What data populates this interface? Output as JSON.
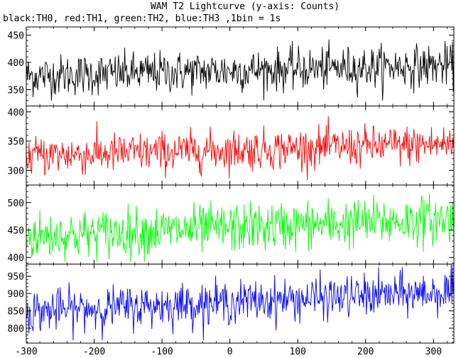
{
  "chart_data": {
    "type": "line",
    "title": "WAM T2 Lightcurve (y-axis: Counts)",
    "subtitle": "black:TH0, red:TH1, green:TH2, blue:TH3 ,1bin = 1s",
    "xlabel": "",
    "ylabel": "",
    "xlim": [
      -300,
      330
    ],
    "x_ticks": [
      -300,
      -200,
      -100,
      0,
      100,
      200,
      300
    ],
    "grid": false,
    "bin_seconds": 1,
    "panels": [
      {
        "name": "TH0",
        "color": "#000000",
        "ylim": [
          320,
          465
        ],
        "y_ticks": [
          350,
          400,
          450
        ],
        "mean_start": 375,
        "mean_end": 395,
        "noise_sd": 19,
        "approx_min": 330,
        "approx_max": 460
      },
      {
        "name": "TH1",
        "color": "#ff0000",
        "ylim": [
          275,
          410
        ],
        "y_ticks": [
          300,
          350,
          400
        ],
        "mean_start": 325,
        "mean_end": 345,
        "noise_sd": 17,
        "approx_min": 283,
        "approx_max": 410
      },
      {
        "name": "TH2",
        "color": "#00ff00",
        "ylim": [
          388,
          532
        ],
        "y_ticks": [
          400,
          450,
          500
        ],
        "mean_start": 438,
        "mean_end": 470,
        "noise_sd": 22,
        "approx_min": 392,
        "approx_max": 530
      },
      {
        "name": "TH3",
        "color": "#0000ff",
        "ylim": [
          757,
          985
        ],
        "y_ticks": [
          800,
          850,
          900,
          950
        ],
        "mean_start": 848,
        "mean_end": 905,
        "noise_sd": 30,
        "approx_min": 765,
        "approx_max": 985
      }
    ]
  }
}
